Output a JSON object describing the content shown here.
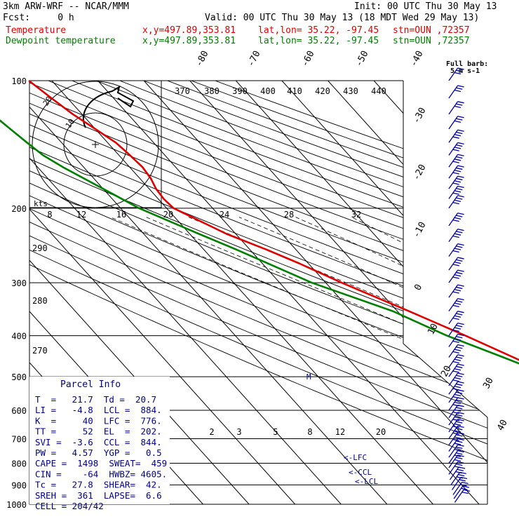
{
  "header": {
    "model": "3km ARW-WRF -- NCAR/MMM",
    "init": "Init: 00 UTC Thu 30 May 13",
    "fcst": "Fcst:     0 h",
    "valid": "Valid: 00 UTC Thu 30 May 13 (18 MDT Wed 29 May 13)",
    "temp_line": {
      "label": "Temperature",
      "xy": "x,y=497.89,353.81",
      "latlon": "lat,lon= 35.22, -97.45",
      "stn": "stn=OUN ,72357"
    },
    "dew_line": {
      "label": "Dewpoint temperature",
      "xy": "x,y=497.89,353.81",
      "latlon": "lat,lon= 35.22, -97.45",
      "stn": "stn=OUN ,72357"
    }
  },
  "colors": {
    "temperature": "#e00000",
    "dewpoint": "#008000",
    "parcel_text": "#00008b",
    "barbs": "#0000a0",
    "isotherm": "#000000"
  },
  "wind_key": {
    "title": "Full barb:",
    "value": "5 m s-1"
  },
  "parcel_info": {
    "title": "Parcel Info",
    "rows": [
      "T  =   21.7  Td =  20.7",
      "LI =   -4.8  LCL =  884.",
      "K  =     40  LFC =  776.",
      "TT =     52  EL  =  202.",
      "SVI =  -3.6  CCL =  844.",
      "PW =   4.57  YGP =   0.5",
      "CAPE =  1498  SWEAT=  459",
      "CIN =    -64  HWBZ= 4605.",
      "Tc =   27.8  SHEAR=  42.",
      "SREH =  361  LAPSE=  6.6",
      "CELL = 204/42"
    ]
  },
  "level_markers": {
    "lfc": "<-LFC",
    "ccl": "<-CCL",
    "lcl": "<-LCL",
    "m": "M"
  },
  "hodograph": {
    "units": "kts",
    "ring_labels": [
      "10",
      "20"
    ]
  },
  "chart_data": {
    "type": "line",
    "title": "",
    "ylabel": "",
    "y_scale": "log-pressure",
    "pressure_ticks": [
      100,
      200,
      300,
      400,
      500,
      600,
      700,
      800,
      900,
      1000
    ],
    "theta_labels": [
      "370",
      "380",
      "390",
      "400",
      "410",
      "420",
      "430",
      "440"
    ],
    "isotherm_labels": [
      "-80",
      "-70",
      "-60",
      "-50",
      "-40",
      "-30",
      "-20",
      "-10",
      "0",
      "10",
      "20",
      "30",
      "40"
    ],
    "mixing_ratio_labels_top": [
      "8",
      "12",
      "16",
      "20",
      "24",
      "28",
      "32"
    ],
    "mixing_ratio_labels_low": [
      "2",
      "3",
      "5",
      "8",
      "12",
      "20"
    ],
    "side_labels": [
      "290",
      "280",
      "270"
    ],
    "series": [
      {
        "name": "Temperature",
        "color": "#e00000",
        "p": [
          950,
          925,
          900,
          870,
          850,
          800,
          750,
          700,
          650,
          600,
          550,
          500,
          450,
          400,
          350,
          300,
          270,
          250,
          230,
          200,
          190,
          180,
          170,
          160,
          150,
          140,
          130,
          120,
          110,
          100
        ],
        "t": [
          28.2,
          27.5,
          26.2,
          22.3,
          20.5,
          16.3,
          11.2,
          7.0,
          3.6,
          0.0,
          -3.8,
          -8.5,
          -13.8,
          -20.0,
          -27.5,
          -36.5,
          -42.0,
          -46.5,
          -52.0,
          -58.5,
          -58.8,
          -58.5,
          -57.6,
          -57.2,
          -57.6,
          -58.2,
          -60.0,
          -62.0,
          -63.5,
          -65.0
        ]
      },
      {
        "name": "Dewpoint temperature",
        "color": "#008000",
        "p": [
          950,
          925,
          900,
          870,
          850,
          800,
          750,
          700,
          650,
          600,
          550,
          500,
          450,
          400,
          350,
          300,
          250,
          230,
          200,
          180,
          160,
          150,
          140,
          130,
          120,
          110,
          100
        ],
        "t": [
          20.0,
          19.8,
          18.8,
          17.5,
          16.5,
          12.5,
          9.8,
          6.2,
          2.5,
          -1.0,
          -4.5,
          -9.0,
          -16.0,
          -24.0,
          -31.0,
          -43.0,
          -53.0,
          -58.0,
          -66.0,
          -70.0,
          -74.5,
          -76.5,
          -77.5,
          -78.5,
          -79.5,
          -80.5,
          -81.5
        ]
      }
    ],
    "winds": {
      "p": [
        990,
        970,
        950,
        925,
        900,
        875,
        850,
        820,
        800,
        775,
        750,
        725,
        700,
        675,
        650,
        625,
        600,
        575,
        550,
        525,
        500,
        475,
        450,
        425,
        400,
        375,
        350,
        325,
        300,
        280,
        260,
        240,
        220,
        200,
        190,
        180,
        170,
        160,
        150,
        140,
        130,
        120,
        110,
        100
      ],
      "speed_ms": [
        8,
        10,
        11,
        12,
        13,
        14,
        15,
        16,
        16,
        17,
        17,
        18,
        18,
        19,
        19,
        20,
        20,
        21,
        21,
        22,
        22,
        22,
        23,
        23,
        24,
        24,
        24,
        25,
        25,
        25,
        25,
        24,
        24,
        23,
        22,
        22,
        21,
        20,
        19,
        18,
        17,
        16,
        15,
        15
      ]
    }
  }
}
